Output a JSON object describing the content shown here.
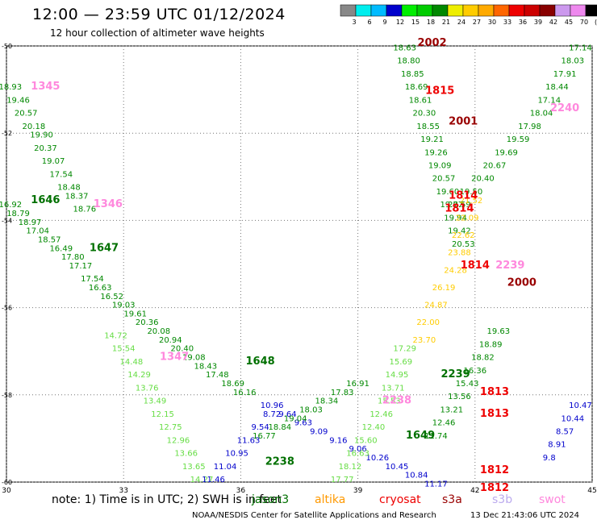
{
  "title": "12:00 — 23:59 UTC 01/12/2024",
  "subtitle": "12 hour collection of altimeter wave heights",
  "footer": {
    "note": "note:  1) Time is in UTC;  2) SWH is in feet",
    "credit": "NOAA/NESDIS Center for Satellite Applications and Research",
    "timestamp": "13 Dec 21:43:06 UTC 2024"
  },
  "satellites": [
    {
      "name": "jason3",
      "color": "#007000"
    },
    {
      "name": "altika",
      "color": "#ff9900"
    },
    {
      "name": "cryosat",
      "color": "#ee0000"
    },
    {
      "name": "s3a",
      "color": "#990000"
    },
    {
      "name": "s3b",
      "color": "#bbaaee"
    },
    {
      "name": "swot",
      "color": "#ff88dd"
    }
  ],
  "colorbar": {
    "labels": [
      "3",
      "6",
      "9",
      "12",
      "15",
      "18",
      "21",
      "24",
      "27",
      "30",
      "33",
      "36",
      "39",
      "42",
      "45",
      "70",
      "(ft)"
    ],
    "colors": [
      "#888888",
      "#00eeee",
      "#00bbff",
      "#0000cc",
      "#00ee00",
      "#00cc00",
      "#008800",
      "#eeee00",
      "#ffcc00",
      "#ffaa00",
      "#ff6600",
      "#ee0000",
      "#cc0000",
      "#880000",
      "#cc99ee",
      "#ee88ee",
      "#000000"
    ]
  },
  "chart_data": {
    "type": "scatter",
    "xlim": [
      30,
      45
    ],
    "ylim": [
      -60,
      -50
    ],
    "xticks": [
      "30",
      "33",
      "36",
      "39",
      "42",
      "45"
    ],
    "yticks": [
      "-50",
      "-52",
      "-54",
      "-56",
      "-58",
      "-60"
    ],
    "grid": true,
    "time_labels": [
      {
        "text": "1345",
        "x": 31.0,
        "y": -51.0,
        "color": "#ff88dd"
      },
      {
        "text": "1346",
        "x": 32.6,
        "y": -53.7,
        "color": "#ff88dd"
      },
      {
        "text": "1347",
        "x": 34.3,
        "y": -57.2,
        "color": "#ff88dd"
      },
      {
        "text": "1646",
        "x": 31.0,
        "y": -53.6,
        "color": "#007000"
      },
      {
        "text": "1647",
        "x": 32.5,
        "y": -54.7,
        "color": "#007000"
      },
      {
        "text": "1648",
        "x": 36.5,
        "y": -57.3,
        "color": "#007000"
      },
      {
        "text": "1649",
        "x": 40.6,
        "y": -59.0,
        "color": "#007000"
      },
      {
        "text": "2238",
        "x": 37.0,
        "y": -59.6,
        "color": "#007000"
      },
      {
        "text": "2239",
        "x": 41.5,
        "y": -57.6,
        "color": "#007000"
      },
      {
        "text": "1815",
        "x": 41.1,
        "y": -51.1,
        "color": "#ee0000"
      },
      {
        "text": "1814",
        "x": 41.7,
        "y": -53.5,
        "color": "#ee0000"
      },
      {
        "text": "1814",
        "x": 41.6,
        "y": -53.8,
        "color": "#ee0000"
      },
      {
        "text": "1814",
        "x": 42.0,
        "y": -55.1,
        "color": "#ee0000"
      },
      {
        "text": "1813",
        "x": 42.5,
        "y": -58.0,
        "color": "#ee0000"
      },
      {
        "text": "1813",
        "x": 42.5,
        "y": -58.5,
        "color": "#ee0000"
      },
      {
        "text": "1812",
        "x": 42.5,
        "y": -59.8,
        "color": "#ee0000"
      },
      {
        "text": "1812",
        "x": 42.5,
        "y": -60.2,
        "color": "#ee0000"
      },
      {
        "text": "2002",
        "x": 40.9,
        "y": -50.0,
        "color": "#990000"
      },
      {
        "text": "2001",
        "x": 41.7,
        "y": -51.8,
        "color": "#990000"
      },
      {
        "text": "2000",
        "x": 43.2,
        "y": -55.5,
        "color": "#990000"
      },
      {
        "text": "2240",
        "x": 44.3,
        "y": -51.5,
        "color": "#ff88dd"
      },
      {
        "text": "2239",
        "x": 42.9,
        "y": -55.1,
        "color": "#ff88dd"
      },
      {
        "text": "2238",
        "x": 40.0,
        "y": -58.2,
        "color": "#ff88dd"
      }
    ],
    "series": [
      {
        "color": "#008800",
        "points": [
          [
            30.1,
            -51.0,
            "18.93"
          ],
          [
            30.3,
            -51.3,
            "19.46"
          ],
          [
            30.5,
            -51.6,
            "20.57"
          ],
          [
            30.7,
            -51.9,
            "20.18"
          ],
          [
            30.9,
            -52.1,
            "19.90"
          ],
          [
            31.0,
            -52.4,
            "20.37"
          ],
          [
            31.2,
            -52.7,
            "19.07"
          ],
          [
            31.4,
            -53.0,
            "17.54"
          ],
          [
            31.6,
            -53.3,
            "18.48"
          ],
          [
            31.8,
            -53.5,
            "18.37"
          ],
          [
            32.0,
            -53.8,
            "18.76"
          ]
        ]
      },
      {
        "color": "#008800",
        "points": [
          [
            30.1,
            -53.7,
            "16.92"
          ],
          [
            30.3,
            -53.9,
            "18.79"
          ],
          [
            30.6,
            -54.1,
            "18.97"
          ],
          [
            30.8,
            -54.3,
            "17.04"
          ],
          [
            31.1,
            -54.5,
            "18.57"
          ],
          [
            31.4,
            -54.7,
            "16.49"
          ],
          [
            31.7,
            -54.9,
            "17.80"
          ],
          [
            31.9,
            -55.1,
            "17.17"
          ],
          [
            32.2,
            -55.4,
            "17.54"
          ],
          [
            32.4,
            -55.6,
            "16.63"
          ],
          [
            32.7,
            -55.8,
            "16.52"
          ],
          [
            33.0,
            -56.0,
            "19.03"
          ],
          [
            33.3,
            -56.2,
            "19.61"
          ],
          [
            33.6,
            -56.4,
            "20.36"
          ],
          [
            33.9,
            -56.6,
            "20.08"
          ],
          [
            34.2,
            -56.8,
            "20.94"
          ],
          [
            34.5,
            -57.0,
            "20.40"
          ],
          [
            34.8,
            -57.2,
            "19.08"
          ],
          [
            35.1,
            -57.4,
            "18.43"
          ],
          [
            35.4,
            -57.6,
            "17.48"
          ],
          [
            35.8,
            -57.8,
            "18.69"
          ],
          [
            36.1,
            -58.0,
            "16.16"
          ]
        ]
      },
      {
        "color": "#66dd44",
        "points": [
          [
            32.8,
            -56.7,
            "14.72"
          ],
          [
            33.0,
            -57.0,
            "15.54"
          ],
          [
            33.2,
            -57.3,
            "14.48"
          ],
          [
            33.4,
            -57.6,
            "14.29"
          ],
          [
            33.6,
            -57.9,
            "13.76"
          ],
          [
            33.8,
            -58.2,
            "13.49"
          ],
          [
            34.0,
            -58.5,
            "12.15"
          ],
          [
            34.2,
            -58.8,
            "12.75"
          ],
          [
            34.4,
            -59.1,
            "12.96"
          ],
          [
            34.6,
            -59.4,
            "13.66"
          ],
          [
            34.8,
            -59.7,
            "13.65"
          ],
          [
            35.0,
            -60.0,
            "14.27"
          ]
        ]
      },
      {
        "color": "#0000cc",
        "points": [
          [
            36.8,
            -58.3,
            "10.96"
          ],
          [
            37.2,
            -58.5,
            "9.64"
          ],
          [
            37.6,
            -58.7,
            "9.63"
          ],
          [
            38.0,
            -58.9,
            "9.09"
          ],
          [
            38.5,
            -59.1,
            "9.16"
          ],
          [
            39.0,
            -59.3,
            "9.06"
          ],
          [
            39.5,
            -59.5,
            "10.26"
          ],
          [
            40.0,
            -59.7,
            "10.45"
          ],
          [
            40.5,
            -59.9,
            "10.84"
          ],
          [
            41.0,
            -60.1,
            "11.17"
          ]
        ]
      },
      {
        "color": "#008800",
        "points": [
          [
            40.2,
            -50.1,
            "18.63"
          ],
          [
            40.3,
            -50.4,
            "18.80"
          ],
          [
            40.4,
            -50.7,
            "18.85"
          ],
          [
            40.5,
            -51.0,
            "18.69"
          ],
          [
            40.6,
            -51.3,
            "18.61"
          ],
          [
            40.7,
            -51.6,
            "20.30"
          ],
          [
            40.8,
            -51.9,
            "18.55"
          ],
          [
            40.9,
            -52.2,
            "19.21"
          ],
          [
            41.0,
            -52.5,
            "19.26"
          ],
          [
            41.1,
            -52.8,
            "19.09"
          ],
          [
            41.2,
            -53.1,
            "20.57"
          ],
          [
            41.3,
            -53.4,
            "19.60"
          ],
          [
            41.4,
            -53.7,
            "19.77"
          ],
          [
            41.5,
            -54.0,
            "19.94"
          ],
          [
            41.6,
            -54.3,
            "19.42"
          ],
          [
            41.7,
            -54.6,
            "20.53"
          ]
        ]
      },
      {
        "color": "#008800",
        "points": [
          [
            44.7,
            -50.1,
            "17.14"
          ],
          [
            44.5,
            -50.4,
            "18.03"
          ],
          [
            44.3,
            -50.7,
            "17.91"
          ],
          [
            44.1,
            -51.0,
            "18.44"
          ],
          [
            43.9,
            -51.3,
            "17.14"
          ],
          [
            43.7,
            -51.6,
            "18.04"
          ],
          [
            43.4,
            -51.9,
            "17.98"
          ],
          [
            43.1,
            -52.2,
            "19.59"
          ],
          [
            42.8,
            -52.5,
            "19.69"
          ],
          [
            42.5,
            -52.8,
            "20.67"
          ],
          [
            42.2,
            -53.1,
            "20.40"
          ],
          [
            41.9,
            -53.4,
            "19.50"
          ],
          [
            41.6,
            -53.7,
            "20.59"
          ]
        ]
      },
      {
        "color": "#ffcc00",
        "points": [
          [
            41.9,
            -53.6,
            "21.52"
          ],
          [
            41.8,
            -54.0,
            "22.09"
          ],
          [
            41.7,
            -54.4,
            "22.62"
          ],
          [
            41.6,
            -54.8,
            "23.88"
          ],
          [
            41.5,
            -55.2,
            "24.28"
          ],
          [
            41.2,
            -55.6,
            "26.19"
          ],
          [
            41.0,
            -56.0,
            "24.87"
          ],
          [
            40.8,
            -56.4,
            "22.00"
          ],
          [
            40.7,
            -56.8,
            "23.70"
          ]
        ]
      },
      {
        "color": "#66dd44",
        "points": [
          [
            40.2,
            -57.0,
            "17.29"
          ],
          [
            40.1,
            -57.3,
            "15.69"
          ],
          [
            40.0,
            -57.6,
            "14.95"
          ],
          [
            39.9,
            -57.9,
            "13.71"
          ],
          [
            39.8,
            -58.2,
            "15.53"
          ],
          [
            39.6,
            -58.5,
            "12.46"
          ],
          [
            39.4,
            -58.8,
            "12.40"
          ],
          [
            39.2,
            -59.1,
            "15.60"
          ],
          [
            39.0,
            -59.4,
            "16.63"
          ],
          [
            38.8,
            -59.7,
            "18.12"
          ],
          [
            38.6,
            -60.0,
            "17.77"
          ]
        ]
      },
      {
        "color": "#008800",
        "points": [
          [
            42.6,
            -56.6,
            "19.63"
          ],
          [
            42.4,
            -56.9,
            "18.89"
          ],
          [
            42.2,
            -57.2,
            "18.82"
          ],
          [
            42.0,
            -57.5,
            "16.36"
          ],
          [
            41.8,
            -57.8,
            "15.43"
          ],
          [
            41.6,
            -58.1,
            "13.56"
          ],
          [
            41.4,
            -58.4,
            "13.21"
          ],
          [
            41.2,
            -58.7,
            "12.46"
          ],
          [
            41.0,
            -59.0,
            "11.74"
          ]
        ]
      },
      {
        "color": "#0000cc",
        "points": [
          [
            44.7,
            -58.3,
            "10.47"
          ],
          [
            44.5,
            -58.6,
            "10.44"
          ],
          [
            44.3,
            -58.9,
            "8.57"
          ],
          [
            44.1,
            -59.2,
            "8.91"
          ],
          [
            43.9,
            -59.5,
            "9.8"
          ]
        ]
      },
      {
        "color": "#008800",
        "points": [
          [
            36.6,
            -59.0,
            "16.77"
          ],
          [
            37.0,
            -58.8,
            "18.84"
          ],
          [
            37.4,
            -58.6,
            "19.04"
          ],
          [
            37.8,
            -58.4,
            "18.03"
          ],
          [
            38.2,
            -58.2,
            "18.34"
          ],
          [
            38.6,
            -58.0,
            "17.83"
          ],
          [
            39.0,
            -57.8,
            "16.91"
          ]
        ]
      },
      {
        "color": "#0000cc",
        "points": [
          [
            35.3,
            -60.0,
            "11.46"
          ],
          [
            35.6,
            -59.7,
            "11.04"
          ],
          [
            35.9,
            -59.4,
            "10.95"
          ],
          [
            36.2,
            -59.1,
            "11.63"
          ],
          [
            36.5,
            -58.8,
            "9.54"
          ],
          [
            36.8,
            -58.5,
            "8.72"
          ]
        ]
      }
    ]
  }
}
